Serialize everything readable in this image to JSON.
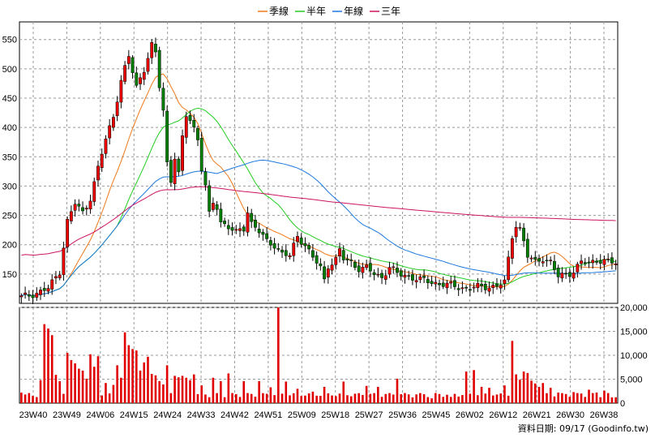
{
  "chart_data": {
    "type": "candlestick",
    "legend": [
      {
        "label": "季線",
        "color": "#f07818"
      },
      {
        "label": "半年",
        "color": "#22cc22"
      },
      {
        "label": "年線",
        "color": "#1e78dc"
      },
      {
        "label": "三年",
        "color": "#cc1460"
      }
    ],
    "x_ticks": [
      "23W40",
      "23W49",
      "24W06",
      "24W15",
      "24W24",
      "24W33",
      "24W42",
      "24W51",
      "25W09",
      "25W18",
      "25W27",
      "25W36",
      "25W45",
      "26W02",
      "26W12",
      "26W21",
      "26W30",
      "26W38"
    ],
    "price_axis": {
      "ticks": [
        150,
        200,
        250,
        300,
        350,
        400,
        450,
        500,
        550
      ],
      "ylim": [
        100,
        580
      ]
    },
    "volume_axis": {
      "ticks": [
        "0",
        "5,000",
        "10,000",
        "15,000",
        "20,000"
      ],
      "ylim": [
        0,
        20000
      ]
    },
    "grid": true,
    "weeks": 156,
    "close_anchors": [
      [
        0,
        110
      ],
      [
        4,
        118
      ],
      [
        7,
        125
      ],
      [
        10,
        155
      ],
      [
        12,
        240
      ],
      [
        14,
        270
      ],
      [
        16,
        255
      ],
      [
        18,
        280
      ],
      [
        20,
        330
      ],
      [
        22,
        380
      ],
      [
        24,
        420
      ],
      [
        26,
        480
      ],
      [
        28,
        520
      ],
      [
        30,
        470
      ],
      [
        32,
        500
      ],
      [
        34,
        540
      ],
      [
        35,
        525
      ],
      [
        36,
        470
      ],
      [
        37,
        430
      ],
      [
        38,
        340
      ],
      [
        39,
        310
      ],
      [
        40,
        350
      ],
      [
        41,
        320
      ],
      [
        42,
        380
      ],
      [
        43,
        420
      ],
      [
        44,
        415
      ],
      [
        45,
        400
      ],
      [
        46,
        380
      ],
      [
        47,
        330
      ],
      [
        48,
        300
      ],
      [
        49,
        250
      ],
      [
        50,
        270
      ],
      [
        51,
        265
      ],
      [
        52,
        240
      ],
      [
        54,
        230
      ],
      [
        56,
        220
      ],
      [
        58,
        228
      ],
      [
        59,
        258
      ],
      [
        60,
        238
      ],
      [
        62,
        222
      ],
      [
        64,
        205
      ],
      [
        66,
        200
      ],
      [
        68,
        185
      ],
      [
        70,
        180
      ],
      [
        72,
        215
      ],
      [
        74,
        200
      ],
      [
        76,
        178
      ],
      [
        78,
        160
      ],
      [
        79,
        140
      ],
      [
        80,
        165
      ],
      [
        82,
        175
      ],
      [
        83,
        190
      ],
      [
        84,
        175
      ],
      [
        86,
        170
      ],
      [
        88,
        160
      ],
      [
        90,
        160
      ],
      [
        92,
        150
      ],
      [
        94,
        145
      ],
      [
        96,
        162
      ],
      [
        98,
        150
      ],
      [
        100,
        148
      ],
      [
        104,
        140
      ],
      [
        108,
        135
      ],
      [
        112,
        130
      ],
      [
        116,
        126
      ],
      [
        120,
        128
      ],
      [
        124,
        130
      ],
      [
        126,
        135
      ],
      [
        128,
        215
      ],
      [
        129,
        235
      ],
      [
        130,
        228
      ],
      [
        131,
        205
      ],
      [
        132,
        180
      ],
      [
        134,
        170
      ],
      [
        136,
        178
      ],
      [
        138,
        170
      ],
      [
        140,
        145
      ],
      [
        142,
        150
      ],
      [
        144,
        155
      ],
      [
        146,
        170
      ],
      [
        148,
        168
      ],
      [
        150,
        175
      ],
      [
        152,
        172
      ],
      [
        155,
        168
      ]
    ],
    "close_range": [
      108,
      545
    ],
    "volume_spikes": [
      [
        0,
        2200
      ],
      [
        1,
        1800
      ],
      [
        3,
        1500
      ],
      [
        5,
        4800
      ],
      [
        6,
        16500
      ],
      [
        7,
        15600
      ],
      [
        8,
        14200
      ],
      [
        9,
        5900
      ],
      [
        10,
        4600
      ],
      [
        12,
        10500
      ],
      [
        13,
        9000
      ],
      [
        14,
        8300
      ],
      [
        15,
        7200
      ],
      [
        16,
        6800
      ],
      [
        17,
        5100
      ],
      [
        18,
        10200
      ],
      [
        19,
        7600
      ],
      [
        20,
        9800
      ],
      [
        22,
        4200
      ],
      [
        24,
        3800
      ],
      [
        25,
        7900
      ],
      [
        26,
        5300
      ],
      [
        27,
        14800
      ],
      [
        28,
        12100
      ],
      [
        29,
        11300
      ],
      [
        30,
        11000
      ],
      [
        31,
        6800
      ],
      [
        32,
        8500
      ],
      [
        33,
        9700
      ],
      [
        34,
        6100
      ],
      [
        35,
        5800
      ],
      [
        36,
        4600
      ],
      [
        37,
        3900
      ],
      [
        38,
        7900
      ],
      [
        40,
        5700
      ],
      [
        41,
        5400
      ],
      [
        42,
        5700
      ],
      [
        43,
        5300
      ],
      [
        44,
        4800
      ],
      [
        45,
        6000
      ],
      [
        47,
        3700
      ],
      [
        50,
        5300
      ],
      [
        52,
        4600
      ],
      [
        54,
        6200
      ],
      [
        58,
        4600
      ],
      [
        62,
        4600
      ],
      [
        65,
        3300
      ],
      [
        67,
        20000
      ],
      [
        69,
        4500
      ],
      [
        72,
        3000
      ],
      [
        76,
        2400
      ],
      [
        79,
        3400
      ],
      [
        84,
        4500
      ],
      [
        90,
        3600
      ],
      [
        93,
        3400
      ],
      [
        98,
        5100
      ],
      [
        107,
        1000
      ],
      [
        112,
        1300
      ],
      [
        116,
        6600
      ],
      [
        118,
        6900
      ],
      [
        120,
        3400
      ],
      [
        122,
        3200
      ],
      [
        124,
        1800
      ],
      [
        126,
        3700
      ],
      [
        128,
        13000
      ],
      [
        129,
        6000
      ],
      [
        130,
        4900
      ],
      [
        131,
        6600
      ],
      [
        132,
        6300
      ],
      [
        133,
        4700
      ],
      [
        134,
        4100
      ],
      [
        135,
        3400
      ],
      [
        136,
        4200
      ],
      [
        138,
        3200
      ],
      [
        140,
        2200
      ],
      [
        142,
        1900
      ],
      [
        144,
        2300
      ],
      [
        146,
        2000
      ],
      [
        148,
        2800
      ],
      [
        150,
        2200
      ],
      [
        152,
        2600
      ],
      [
        154,
        1200
      ]
    ],
    "volume_base": 1200
  },
  "footer": {
    "text": "資料日期: 09/17  (Goodinfo.tw)"
  }
}
